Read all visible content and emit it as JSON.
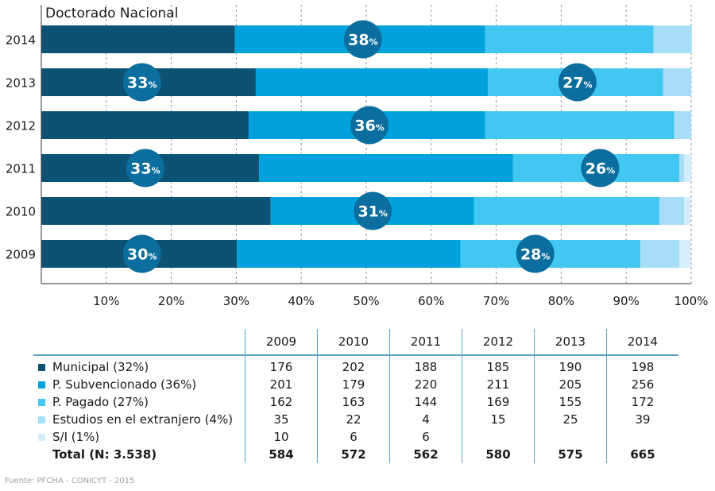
{
  "chart_data": {
    "type": "bar",
    "stacked": true,
    "orientation": "horizontal",
    "title": "Doctorado Nacional",
    "categories": [
      "2014",
      "2013",
      "2012",
      "2011",
      "2010",
      "2009"
    ],
    "series": [
      {
        "name": "Municipal (32%)",
        "color": "#0b5275",
        "values": [
          29.8,
          33.0,
          31.9,
          33.5,
          35.3,
          30.1
        ]
      },
      {
        "name": "P. Subvencionado (36%)",
        "color": "#00a2dd",
        "values": [
          38.5,
          35.7,
          36.4,
          39.1,
          31.3,
          34.4
        ]
      },
      {
        "name": "P. Pagado (27%)",
        "color": "#42c6f2",
        "values": [
          25.9,
          27.0,
          29.1,
          25.6,
          28.5,
          27.7
        ]
      },
      {
        "name": "Estudios en el extranjero (4%)",
        "color": "#a6def8",
        "values": [
          5.9,
          4.3,
          2.6,
          0.7,
          3.8,
          6.0
        ]
      },
      {
        "name": "S/I (1%)",
        "color": "#d4eefb",
        "values": [
          0,
          0,
          0,
          1.1,
          1.0,
          1.7
        ]
      }
    ],
    "x_ticks": [
      "10%",
      "20%",
      "30%",
      "40%",
      "50%",
      "60%",
      "70%",
      "80%",
      "90%",
      "100%"
    ],
    "xlim": [
      0,
      100
    ],
    "badges": [
      {
        "category": "2014",
        "value": 38,
        "unit": "%",
        "at": 49.5
      },
      {
        "category": "2013",
        "value": 33,
        "unit": "%",
        "at": 15.5
      },
      {
        "category": "2013",
        "value": 27,
        "unit": "%",
        "at": 82.5
      },
      {
        "category": "2012",
        "value": 36,
        "unit": "%",
        "at": 50.5
      },
      {
        "category": "2011",
        "value": 33,
        "unit": "%",
        "at": 16.0
      },
      {
        "category": "2011",
        "value": 26,
        "unit": "%",
        "at": 86.0
      },
      {
        "category": "2010",
        "value": 31,
        "unit": "%",
        "at": 51.0
      },
      {
        "category": "2009",
        "value": 30,
        "unit": "%",
        "at": 15.5
      },
      {
        "category": "2009",
        "value": 28,
        "unit": "%",
        "at": 76.0
      }
    ],
    "badge_color": "#0b6e9e",
    "grid": true,
    "table": {
      "years": [
        "2009",
        "2010",
        "2011",
        "2012",
        "2013",
        "2014"
      ],
      "rows": [
        {
          "label": "Municipal (32%)",
          "color": "#0b5275",
          "values": [
            "176",
            "202",
            "188",
            "185",
            "190",
            "198"
          ]
        },
        {
          "label": "P. Subvencionado (36%)",
          "color": "#00a2dd",
          "values": [
            "201",
            "179",
            "220",
            "211",
            "205",
            "256"
          ]
        },
        {
          "label": "P. Pagado (27%)",
          "color": "#42c6f2",
          "values": [
            "162",
            "163",
            "144",
            "169",
            "155",
            "172"
          ]
        },
        {
          "label": "Estudios en el extranjero (4%)",
          "color": "#a6def8",
          "values": [
            "35",
            "22",
            "4",
            "15",
            "25",
            "39"
          ]
        },
        {
          "label": "S/I (1%)",
          "color": "#d4eefb",
          "values": [
            "10",
            "6",
            "6",
            "",
            "",
            ""
          ]
        }
      ],
      "total": {
        "label": "Total (N: 3.538)",
        "values": [
          "584",
          "572",
          "562",
          "580",
          "575",
          "665"
        ]
      }
    }
  },
  "source": "Fuente: PFCHA - CONICYT - 2015"
}
